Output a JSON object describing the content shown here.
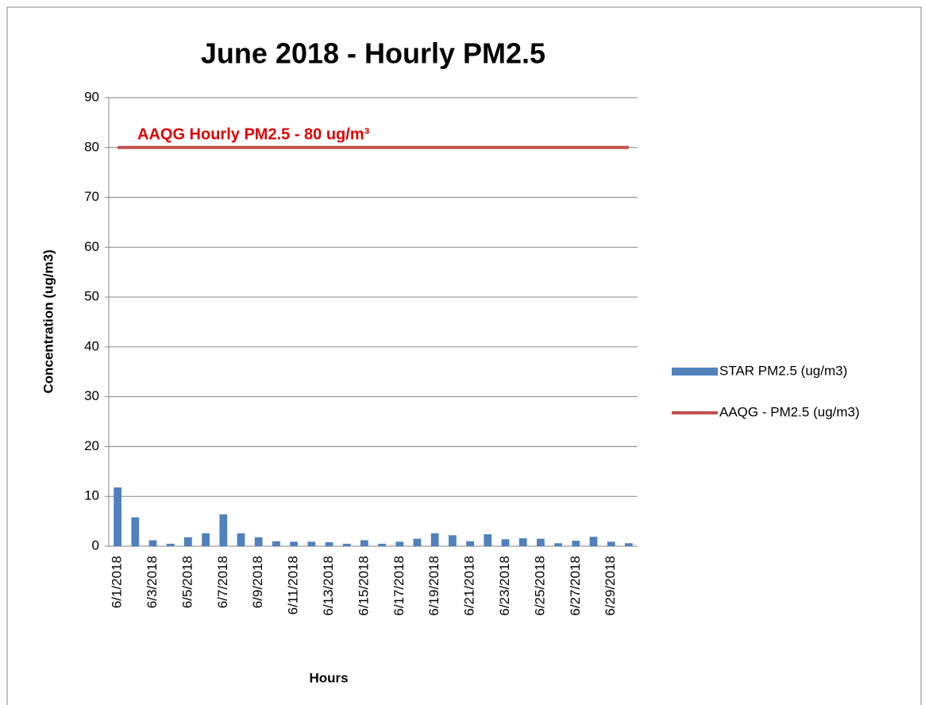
{
  "chart_data": {
    "type": "bar",
    "title": "June 2018 - Hourly PM2.5",
    "x_label": "Hours",
    "y_label": "Concentration (ug/m3)",
    "annotation": "AAQG Hourly PM2.5 - 80 ug/m³",
    "categories": [
      "6/1/2018",
      null,
      "6/3/2018",
      null,
      "6/5/2018",
      null,
      "6/7/2018",
      null,
      "6/9/2018",
      null,
      "6/11/2018",
      null,
      "6/13/2018",
      null,
      "6/15/2018",
      null,
      "6/17/2018",
      null,
      "6/19/2018",
      null,
      "6/21/2018",
      null,
      "6/23/2018",
      null,
      "6/25/2018",
      null,
      "6/27/2018",
      null,
      "6/29/2018",
      null
    ],
    "series": [
      {
        "name": "STAR PM2.5 (ug/m3)",
        "type": "bar",
        "color": "#4f81bd",
        "values": [
          11.8,
          5.8,
          1.2,
          0.5,
          1.8,
          2.6,
          6.4,
          2.6,
          1.8,
          1.0,
          0.9,
          0.9,
          0.8,
          0.5,
          1.2,
          0.5,
          0.9,
          1.5,
          2.6,
          2.2,
          1.0,
          2.4,
          1.4,
          1.6,
          1.5,
          0.6,
          1.1,
          1.9,
          0.9,
          0.6
        ]
      },
      {
        "name": "AAQG - PM2.5 (ug/m3)",
        "type": "line",
        "color": "#c0504d",
        "values": [
          80,
          80,
          80,
          80,
          80,
          80,
          80,
          80,
          80,
          80,
          80,
          80,
          80,
          80,
          80,
          80,
          80,
          80,
          80,
          80,
          80,
          80,
          80,
          80,
          80,
          80,
          80,
          80,
          80,
          80
        ]
      }
    ],
    "ylim": [
      0,
      90
    ],
    "yticks": [
      0,
      10,
      20,
      30,
      40,
      50,
      60,
      70,
      80,
      90
    ],
    "grid": true,
    "legend": "right"
  }
}
